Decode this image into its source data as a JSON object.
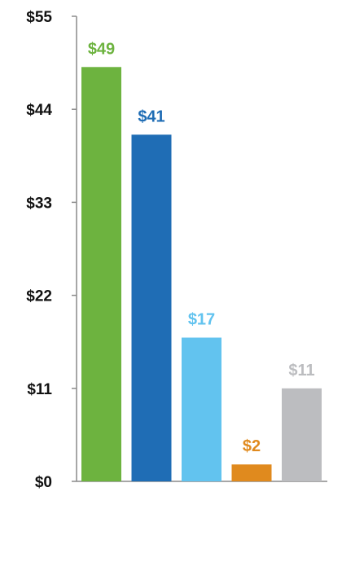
{
  "chart_data": {
    "type": "bar",
    "title": "",
    "xlabel": "",
    "ylabel": "",
    "categories": [
      "",
      "",
      "",
      "",
      ""
    ],
    "values": [
      49,
      41,
      17,
      2,
      11
    ],
    "data_labels": [
      "$49",
      "$41",
      "$17",
      "$2",
      "$11"
    ],
    "colors": [
      "#6db33f",
      "#1f6db5",
      "#62c3ef",
      "#e08a1e",
      "#bcbdc0"
    ],
    "label_colors": [
      "#6db33f",
      "#1f6db5",
      "#62c3ef",
      "#e08a1e",
      "#bcbdc0"
    ],
    "ylim": [
      0,
      55
    ],
    "yticks": [
      0,
      11,
      22,
      33,
      44,
      55
    ],
    "ytick_labels": [
      "$0",
      "$11",
      "$22",
      "$33",
      "$44",
      "$55"
    ],
    "grid": false,
    "legend": "none"
  }
}
